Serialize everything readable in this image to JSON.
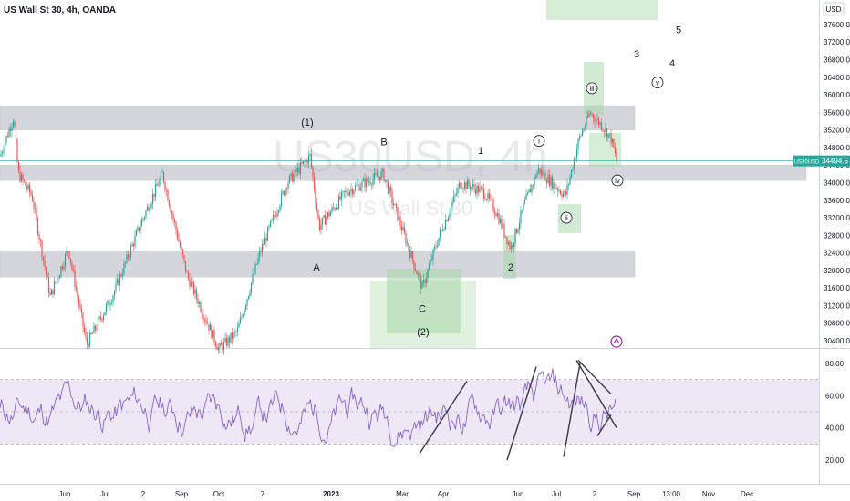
{
  "header": {
    "title": "US Wall St 30, 4h, OANDA",
    "currency": "USD"
  },
  "watermark": {
    "symbol": "US30USD, 4h",
    "name": "US Wall St 30"
  },
  "colors": {
    "up": "#26a69a",
    "down": "#ef5350",
    "zone_gray": "#b2b5be",
    "zone_green": "#a5d6a7",
    "rsi_line": "#7e57c2",
    "rsi_band": "#ede7f6",
    "price_label_bg": "#26a69a",
    "trendline": "#363a45"
  },
  "chart_data": [
    {
      "type": "candlestick",
      "name": "price",
      "y_range": [
        30200,
        38000
      ],
      "y_ticks": [
        30400,
        30800,
        31200,
        31600,
        32000,
        32400,
        32800,
        33200,
        33600,
        34000,
        34400,
        34800,
        35200,
        35600,
        36000,
        36400,
        36800,
        37200,
        37600
      ],
      "y_tick_labels": [
        "30400.0",
        "30800.0",
        "31200.0",
        "31600.0",
        "32000.0",
        "32400.0",
        "32800.0",
        "33200.0",
        "33600.0",
        "34000.0",
        "34400.0",
        "34800.0",
        "35200.0",
        "35600.0",
        "36000.0",
        "36400.0",
        "36800.0",
        "37200.0",
        "37600.0"
      ],
      "x_labels": [
        "Jun",
        "Jul",
        "2",
        "Sep",
        "Oct",
        "7",
        "2023",
        "Mar",
        "Apr",
        "Jun",
        "Jul",
        "2",
        "Sep",
        "13:00",
        "Nov",
        "Dec"
      ],
      "last_price": {
        "symbol": "US30USD",
        "value": "34494.5",
        "y": 34494.5
      },
      "close_path": [
        [
          0,
          34600
        ],
        [
          15,
          35500
        ],
        [
          20,
          34200
        ],
        [
          35,
          33700
        ],
        [
          55,
          31400
        ],
        [
          75,
          32500
        ],
        [
          95,
          30300
        ],
        [
          125,
          31500
        ],
        [
          155,
          33100
        ],
        [
          178,
          34200
        ],
        [
          205,
          31900
        ],
        [
          240,
          30200
        ],
        [
          260,
          30600
        ],
        [
          285,
          32400
        ],
        [
          315,
          34000
        ],
        [
          340,
          34600
        ],
        [
          350,
          33000
        ],
        [
          380,
          33800
        ],
        [
          400,
          34000
        ],
        [
          420,
          34200
        ],
        [
          440,
          33000
        ],
        [
          463,
          31600
        ],
        [
          480,
          32700
        ],
        [
          505,
          34000
        ],
        [
          530,
          33800
        ],
        [
          545,
          33300
        ],
        [
          560,
          32500
        ],
        [
          575,
          33500
        ],
        [
          590,
          34300
        ],
        [
          620,
          33700
        ],
        [
          635,
          35000
        ],
        [
          647,
          35600
        ],
        [
          660,
          35300
        ],
        [
          670,
          35000
        ],
        [
          676,
          34500
        ]
      ],
      "resistance_zones": [
        {
          "y_low": 35200,
          "y_high": 35750
        },
        {
          "y_low": 34050,
          "y_high": 34400
        },
        {
          "y_low": 31850,
          "y_high": 32450
        }
      ],
      "annotations": [
        {
          "text": "(1)",
          "y": 35300
        },
        {
          "text": "B",
          "y": 34850
        },
        {
          "text": "1",
          "y": 34650
        },
        {
          "text": "A",
          "y": 32000
        },
        {
          "text": "2",
          "y": 32000
        },
        {
          "text": "C",
          "y": 31050
        },
        {
          "text": "(2)",
          "y": 30520
        },
        {
          "text": "3",
          "y": 36850
        },
        {
          "text": "4",
          "y": 36650
        },
        {
          "text": "5",
          "y": 37400
        }
      ],
      "circled": [
        {
          "text": "i",
          "y": 34950
        },
        {
          "text": "ii",
          "y": 33200
        },
        {
          "text": "iii",
          "y": 36150
        },
        {
          "text": "iv",
          "y": 34050
        },
        {
          "text": "v",
          "y": 36280
        }
      ]
    },
    {
      "type": "line",
      "name": "oscillator",
      "y_range": [
        12,
        88
      ],
      "y_ticks": [
        20,
        40,
        60,
        80
      ],
      "y_tick_labels": [
        "20.00",
        "40.00",
        "60.00",
        "80.00"
      ],
      "band": [
        30,
        70
      ],
      "trendlines": [
        [
          [
            460,
            24
          ],
          [
            512,
            69
          ]
        ],
        [
          [
            556,
            20
          ],
          [
            588,
            78
          ]
        ],
        [
          [
            618,
            22
          ],
          [
            636,
            80
          ]
        ],
        [
          [
            634,
            82
          ],
          [
            670,
            61
          ]
        ],
        [
          [
            632,
            82
          ],
          [
            676,
            40
          ]
        ],
        [
          [
            655,
            35
          ],
          [
            670,
            48
          ]
        ]
      ]
    }
  ]
}
